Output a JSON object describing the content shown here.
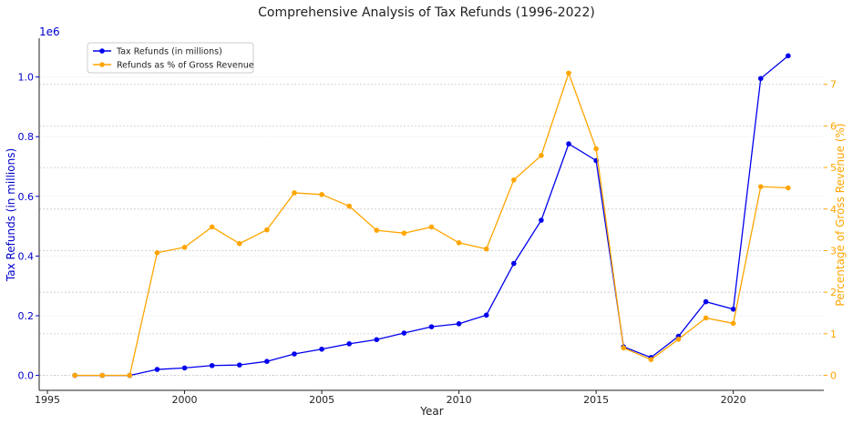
{
  "chart_data": {
    "type": "line",
    "title": "Comprehensive Analysis of Tax Refunds (1996-2022)",
    "xlabel": "Year",
    "ylabel_left": "Tax Refunds (in millions)",
    "ylabel_right": "Percentage of Gross Revenue (%)",
    "left_axis_offset_label": "1e6",
    "x": [
      1996,
      1997,
      1998,
      1999,
      2000,
      2001,
      2002,
      2003,
      2004,
      2005,
      2006,
      2007,
      2008,
      2009,
      2010,
      2011,
      2012,
      2013,
      2014,
      2015,
      2016,
      2017,
      2018,
      2019,
      2020,
      2021,
      2022
    ],
    "xlim": [
      1994.7,
      2023.3
    ],
    "x_ticks": [
      1995,
      2000,
      2005,
      2010,
      2015,
      2020
    ],
    "left_ylim": [
      -0.05,
      1.13
    ],
    "left_ticks": [
      0.0,
      0.2,
      0.4,
      0.6,
      0.8,
      1.0
    ],
    "right_ylim": [
      -0.36,
      8.11
    ],
    "right_ticks": [
      0,
      1,
      2,
      3,
      4,
      5,
      6,
      7
    ],
    "grid": "horizontal",
    "legend_position": "top-left",
    "series": [
      {
        "name": "Tax Refunds (in millions)",
        "axis": "left",
        "color": "#0000ee",
        "values": [
          0,
          0,
          0,
          20000,
          25000,
          33000,
          35000,
          47000,
          72000,
          88000,
          106000,
          120000,
          142000,
          163000,
          173000,
          202000,
          375000,
          520000,
          776000,
          720000,
          96000,
          60000,
          131000,
          247000,
          222000,
          995000,
          1071000
        ]
      },
      {
        "name": "Refunds as % of Gross Revenue",
        "axis": "right",
        "color": "#ffa500",
        "values": [
          0,
          0,
          0,
          2.95,
          3.08,
          3.57,
          3.17,
          3.5,
          4.39,
          4.35,
          4.07,
          3.49,
          3.42,
          3.57,
          3.19,
          3.04,
          4.7,
          5.29,
          7.27,
          5.45,
          0.66,
          0.38,
          0.87,
          1.38,
          1.25,
          4.54,
          4.51
        ]
      }
    ]
  }
}
